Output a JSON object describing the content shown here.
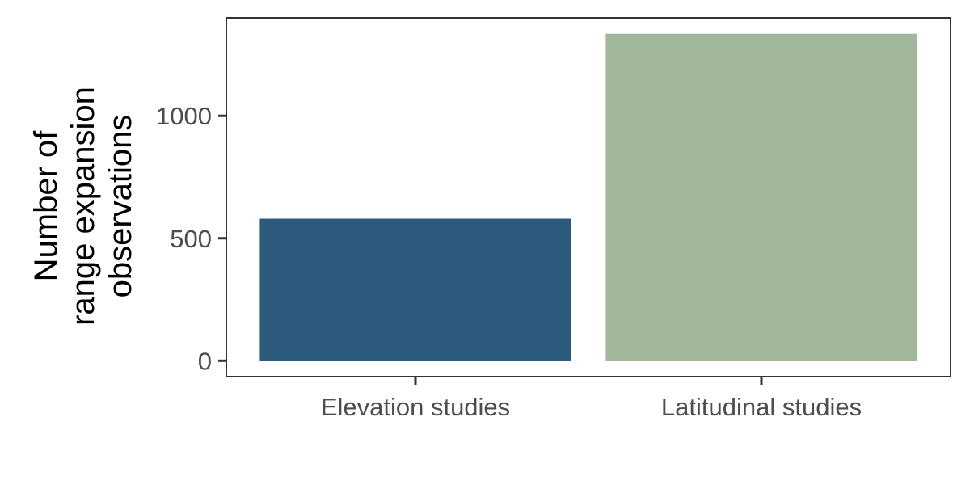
{
  "chart_data": {
    "type": "bar",
    "categories": [
      "Elevation studies",
      "Latitudinal studies"
    ],
    "values": [
      580,
      1335
    ],
    "colors": [
      "#2b5a7c",
      "#a0b79a"
    ],
    "title": "",
    "xlabel": "",
    "ylabel_lines": [
      "Number of",
      "range expansion",
      "observations"
    ],
    "ylim": [
      -65,
      1400
    ],
    "yticks": [
      0,
      500,
      1000
    ],
    "ytick_labels": [
      "0",
      "500",
      "1000"
    ],
    "grid": false,
    "legend": "none"
  }
}
